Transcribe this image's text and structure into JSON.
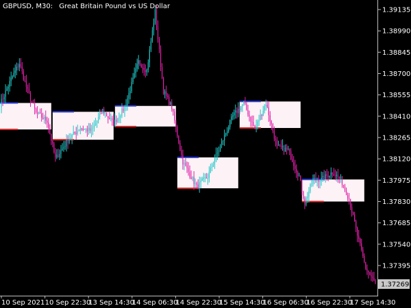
{
  "header": {
    "symbol_timeframe": "GBPUSD, M30:",
    "description": "Great Britain Pound vs US Dollar"
  },
  "colors": {
    "background": "#000000",
    "axis": "#c0c0c0",
    "text": "#ffffff",
    "bull": "#1ec8c8",
    "bear": "#e020a8",
    "box_fill": "#fdf2f6",
    "box_top_edge": "#3040e0",
    "box_bottom_edge": "#e02020",
    "price_tag_bg": "#c8c8c8",
    "price_tag_text": "#000000"
  },
  "chart_data": {
    "type": "candlestick",
    "price_axis": {
      "range": [
        1.3719,
        1.392
      ],
      "ticks": [
        "1.39135",
        "1.38990",
        "1.38845",
        "1.38700",
        "1.38555",
        "1.38410",
        "1.38265",
        "1.38120",
        "1.37975",
        "1.37830",
        "1.37685",
        "1.37540",
        "1.37395"
      ],
      "current_price": "1.37269"
    },
    "time_axis": {
      "labels": [
        "10 Sep 2021",
        "10 Sep 22:30",
        "13 Sep 14:30",
        "14 Sep 06:30",
        "14 Sep 22:30",
        "15 Sep 14:30",
        "16 Sep 06:30",
        "16 Sep 22:30",
        "17 Sep 14:30"
      ]
    },
    "bars": 272,
    "path_close": [
      [
        0,
        1.3849
      ],
      [
        8,
        1.3866
      ],
      [
        14,
        1.3877
      ],
      [
        20,
        1.3858
      ],
      [
        26,
        1.3843
      ],
      [
        34,
        1.3838
      ],
      [
        40,
        1.3812
      ],
      [
        50,
        1.3826
      ],
      [
        58,
        1.3833
      ],
      [
        66,
        1.3831
      ],
      [
        74,
        1.3845
      ],
      [
        82,
        1.3836
      ],
      [
        90,
        1.3847
      ],
      [
        100,
        1.3878
      ],
      [
        106,
        1.3872
      ],
      [
        112,
        1.3912
      ],
      [
        118,
        1.3858
      ],
      [
        124,
        1.3847
      ],
      [
        132,
        1.381
      ],
      [
        142,
        1.3793
      ],
      [
        150,
        1.38
      ],
      [
        160,
        1.3823
      ],
      [
        168,
        1.3841
      ],
      [
        176,
        1.385
      ],
      [
        184,
        1.3832
      ],
      [
        192,
        1.385
      ],
      [
        200,
        1.382
      ],
      [
        208,
        1.3818
      ],
      [
        216,
        1.38
      ],
      [
        220,
        1.3782
      ],
      [
        226,
        1.3798
      ],
      [
        232,
        1.3798
      ],
      [
        240,
        1.3803
      ],
      [
        246,
        1.3798
      ],
      [
        252,
        1.3785
      ],
      [
        258,
        1.376
      ],
      [
        264,
        1.3738
      ],
      [
        271,
        1.3727
      ]
    ],
    "session_boxes": [
      {
        "start": 0,
        "end": 37,
        "high": 1.385,
        "low": 1.3832
      },
      {
        "start": 38,
        "end": 82,
        "high": 1.3844,
        "low": 1.3825
      },
      {
        "start": 83,
        "end": 127,
        "high": 1.3848,
        "low": 1.3834
      },
      {
        "start": 128,
        "end": 172,
        "high": 1.3813,
        "low": 1.3792
      },
      {
        "start": 173,
        "end": 217,
        "high": 1.3851,
        "low": 1.3833
      },
      {
        "start": 218,
        "end": 263,
        "high": 1.3798,
        "low": 1.3783
      }
    ]
  }
}
